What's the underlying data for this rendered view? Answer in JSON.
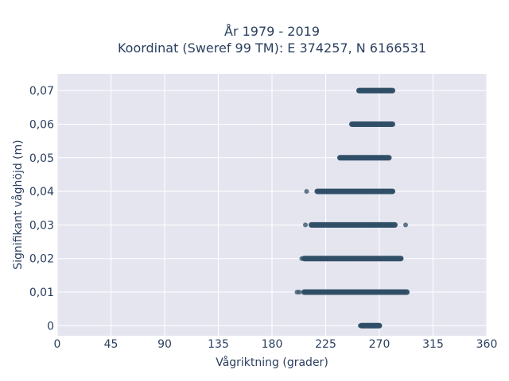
{
  "chart_data": {
    "type": "scatter",
    "title_line1": "År 1979 - 2019",
    "title_line2": "Koordinat (Sweref 99 TM): E 374257, N 6166531",
    "xlabel": "Vågriktning (grader)",
    "ylabel": "Signifikant våghöjd (m)",
    "xlim": [
      0,
      360
    ],
    "ylim": [
      -0.003,
      0.075
    ],
    "x_ticks": [
      0,
      45,
      90,
      135,
      180,
      225,
      270,
      315,
      360
    ],
    "x_tick_labels": [
      "0",
      "45",
      "90",
      "135",
      "180",
      "225",
      "270",
      "315",
      "360"
    ],
    "y_ticks": [
      0,
      0.01,
      0.02,
      0.03,
      0.04,
      0.05,
      0.06,
      0.07
    ],
    "y_tick_labels": [
      "0",
      "0,01",
      "0,02",
      "0,03",
      "0,04",
      "0,05",
      "0,06",
      "0,07"
    ],
    "grid": true,
    "marker_color": "#2f4f66",
    "plot_bg": "#e5e5f0",
    "bands": [
      {
        "y": 0.0,
        "dense_min": 255,
        "dense_max": 270,
        "outliers": [
          254,
          261,
          266,
          268
        ]
      },
      {
        "y": 0.01,
        "dense_min": 207,
        "dense_max": 293,
        "outliers": [
          201,
          203
        ]
      },
      {
        "y": 0.02,
        "dense_min": 207,
        "dense_max": 288,
        "outliers": [
          205
        ]
      },
      {
        "y": 0.03,
        "dense_min": 213,
        "dense_max": 283,
        "outliers": [
          208,
          292
        ]
      },
      {
        "y": 0.04,
        "dense_min": 218,
        "dense_max": 281,
        "outliers": [
          209
        ]
      },
      {
        "y": 0.05,
        "dense_min": 237,
        "dense_max": 278,
        "outliers": []
      },
      {
        "y": 0.06,
        "dense_min": 247,
        "dense_max": 281,
        "outliers": []
      },
      {
        "y": 0.07,
        "dense_min": 253,
        "dense_max": 281,
        "outliers": []
      }
    ]
  }
}
